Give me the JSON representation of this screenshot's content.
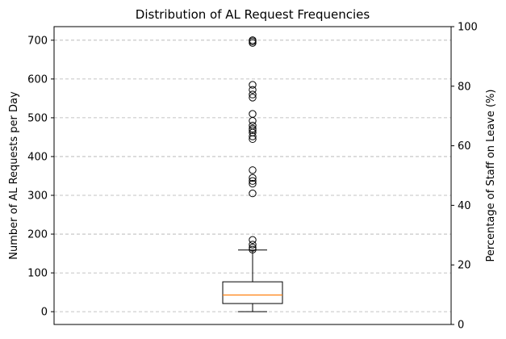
{
  "chart_data": {
    "type": "box",
    "title": "Distribution of AL Request Frequencies",
    "ylabel": "Number of AL Requests per Day",
    "y2label": "Percentage of Staff on Leave (%)",
    "ylim": [
      -33,
      735
    ],
    "y2lim": [
      0,
      100
    ],
    "yticks": [
      0,
      100,
      200,
      300,
      400,
      500,
      600,
      700
    ],
    "y2ticks": [
      0,
      20,
      40,
      60,
      80,
      100
    ],
    "grid": "y-dashed",
    "box": {
      "whisker_low": 0,
      "q1": 21,
      "median": 43,
      "q3": 77,
      "whisker_high": 159
    },
    "outliers": [
      160,
      165,
      173,
      185,
      305,
      330,
      337,
      345,
      365,
      445,
      452,
      462,
      468,
      472,
      480,
      492,
      510,
      552,
      560,
      572,
      585,
      693,
      697,
      700
    ],
    "colors": {
      "box": "#000000",
      "median": "#ff7f0e",
      "grid": "#b0b0b0"
    }
  }
}
